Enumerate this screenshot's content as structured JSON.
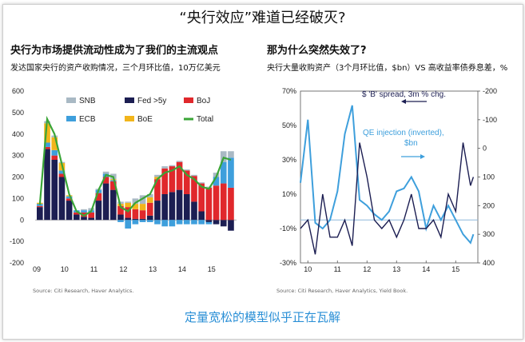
{
  "page": {
    "title": "“央行效应”难道已经破灭?",
    "footer": "定量宽松的模型似乎正在瓦解"
  },
  "left_panel": {
    "heading": "央行为市场提供流动性成为了我们的主流观点",
    "caption": "发达国家央行的资产收购情况，三个月环比值，10万亿美元",
    "source": "Source: Citi Research, Haver Analytics."
  },
  "right_panel": {
    "heading": "那为什么突然失效了?",
    "caption": "央行大量收购资产（3个月环比值，$bn）VS 高收益率债券息差，%",
    "source": "Source: Citi Research, Haver Analytics, Yield Book.",
    "annotation_spread": "$ 'B' spread, 3m % chg.",
    "annotation_qe_1": "QE injection (inverted),",
    "annotation_qe_2": "$bn"
  },
  "colors": {
    "snb": "#a9b9c4",
    "fed": "#1c1e52",
    "boj": "#e0282c",
    "ecb": "#3e9fdc",
    "boe": "#f2b51b",
    "total": "#3aa537",
    "spread": "#1c1e52",
    "qe": "#3e9fdc",
    "zero_line": "#8fb8da"
  },
  "chart_data": [
    {
      "type": "bar",
      "stacked": true,
      "x_ticks": [
        "09",
        "10",
        "11",
        "12",
        "13",
        "14",
        "15"
      ],
      "y_ticks": [
        "600",
        "500",
        "400",
        "300",
        "200",
        "100",
        "0",
        "-100",
        "-200"
      ],
      "ylim": [
        -200,
        600
      ],
      "legend_position": "top-center",
      "x": [
        2009.0,
        2009.25,
        2009.5,
        2009.75,
        2010.0,
        2010.25,
        2010.5,
        2010.75,
        2011.0,
        2011.25,
        2011.5,
        2011.75,
        2012.0,
        2012.25,
        2012.5,
        2012.75,
        2013.0,
        2013.25,
        2013.5,
        2013.75,
        2014.0,
        2014.25,
        2014.5,
        2014.75,
        2015.0,
        2015.25,
        2015.5
      ],
      "series": [
        {
          "name": "Fed >5y",
          "key": "fed",
          "values": [
            60,
            330,
            280,
            200,
            90,
            25,
            15,
            10,
            90,
            170,
            140,
            25,
            10,
            5,
            5,
            20,
            90,
            120,
            130,
            140,
            120,
            85,
            40,
            -10,
            -20,
            -30,
            -50
          ]
        },
        {
          "name": "BoJ",
          "key": "boj",
          "values": [
            5,
            10,
            20,
            15,
            10,
            10,
            20,
            25,
            35,
            30,
            40,
            40,
            50,
            45,
            40,
            60,
            100,
            120,
            120,
            130,
            110,
            120,
            130,
            150,
            160,
            170,
            150
          ]
        },
        {
          "name": "ECB",
          "key": "ecb",
          "values": [
            10,
            20,
            25,
            15,
            10,
            10,
            10,
            10,
            15,
            15,
            5,
            -10,
            -40,
            -20,
            -10,
            -10,
            -20,
            -30,
            -30,
            -20,
            -20,
            -20,
            -20,
            -10,
            40,
            100,
            140
          ]
        },
        {
          "name": "BoE",
          "key": "boe",
          "values": [
            5,
            90,
            60,
            35,
            5,
            0,
            0,
            0,
            0,
            0,
            5,
            10,
            20,
            25,
            30,
            25,
            10,
            0,
            0,
            0,
            0,
            0,
            0,
            0,
            0,
            0,
            0
          ]
        },
        {
          "name": "SNB",
          "key": "snb",
          "values": [
            0,
            10,
            8,
            5,
            0,
            0,
            5,
            10,
            5,
            10,
            25,
            10,
            5,
            25,
            40,
            15,
            10,
            10,
            5,
            5,
            5,
            5,
            5,
            5,
            20,
            50,
            30
          ]
        }
      ],
      "total": {
        "name": "Total",
        "values": [
          70,
          470,
          400,
          260,
          120,
          40,
          20,
          40,
          140,
          210,
          200,
          60,
          40,
          80,
          100,
          120,
          190,
          220,
          230,
          250,
          210,
          190,
          155,
          145,
          200,
          290,
          280
        ]
      }
    },
    {
      "type": "line",
      "x_ticks": [
        "10",
        "11",
        "12",
        "13",
        "14",
        "15"
      ],
      "y_ticks_left": [
        "70%",
        "50%",
        "30%",
        "10%",
        "-10%",
        "-30%"
      ],
      "y_ticks_right": [
        "-200",
        "-100",
        "0",
        "100",
        "200",
        "300",
        "400"
      ],
      "ylim_left": [
        -30,
        70
      ],
      "ylim_right": [
        -200,
        400
      ],
      "x": [
        2009.75,
        2010.0,
        2010.25,
        2010.5,
        2010.75,
        2011.0,
        2011.25,
        2011.5,
        2011.75,
        2012.0,
        2012.25,
        2012.5,
        2012.75,
        2013.0,
        2013.25,
        2013.5,
        2013.75,
        2014.0,
        2014.25,
        2014.5,
        2014.75,
        2015.0,
        2015.25,
        2015.5,
        2015.6
      ],
      "series": [
        {
          "name": "$ 'B' spread, 3m % chg.",
          "axis": "left",
          "values": [
            -10,
            -5,
            -25,
            10,
            -15,
            -15,
            -5,
            -20,
            40,
            20,
            -5,
            -10,
            -5,
            -15,
            -5,
            10,
            -10,
            -10,
            -5,
            -15,
            10,
            0,
            40,
            15,
            20
          ]
        },
        {
          "name": "QE injection (inverted), $bn",
          "axis": "right",
          "values": [
            120,
            -100,
            260,
            280,
            250,
            150,
            -50,
            -150,
            180,
            200,
            230,
            250,
            220,
            150,
            140,
            100,
            150,
            280,
            200,
            250,
            200,
            250,
            300,
            330,
            300
          ]
        }
      ]
    }
  ]
}
